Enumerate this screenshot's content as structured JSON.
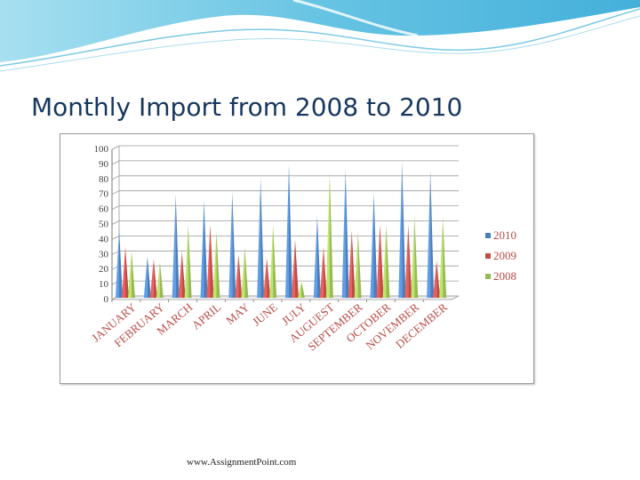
{
  "title": "Monthly Import from 2008 to 2010",
  "footer": "www.AssignmentPoint.com",
  "colors": {
    "title": "#17375E",
    "series_2010": "#4A7EBB",
    "series_2009": "#BE4B48",
    "series_2008": "#98B954"
  },
  "chart_data": {
    "type": "bar",
    "categories": [
      "JANUARY",
      "FEBRUARY",
      "MARCH",
      "APRIL",
      "MAY",
      "JUNE",
      "JULY",
      "AUGUEST",
      "SEPTEMBER",
      "OCTOBER",
      "NOVEMBER",
      "DECEMBER"
    ],
    "series": [
      {
        "name": "2010",
        "color": "#4A7EBB",
        "values": [
          47,
          29,
          70,
          66,
          72,
          81,
          90,
          56,
          87,
          71,
          92,
          86
        ]
      },
      {
        "name": "2009",
        "color": "#BE4B48",
        "values": [
          35,
          27,
          32,
          50,
          30,
          28,
          40,
          35,
          46,
          50,
          50,
          26
        ]
      },
      {
        "name": "2008",
        "color": "#98B954",
        "values": [
          32,
          25,
          50,
          45,
          35,
          50,
          12,
          85,
          45,
          50,
          56,
          55
        ]
      }
    ],
    "legend_order": [
      "2010",
      "2009",
      "2008"
    ],
    "ylim": [
      0,
      100
    ],
    "yticks": [
      0,
      10,
      20,
      30,
      40,
      50,
      60,
      70,
      80,
      90,
      100
    ],
    "grid": true,
    "legend": "right",
    "xlabel": "",
    "ylabel": "",
    "style": "3d-cone"
  }
}
